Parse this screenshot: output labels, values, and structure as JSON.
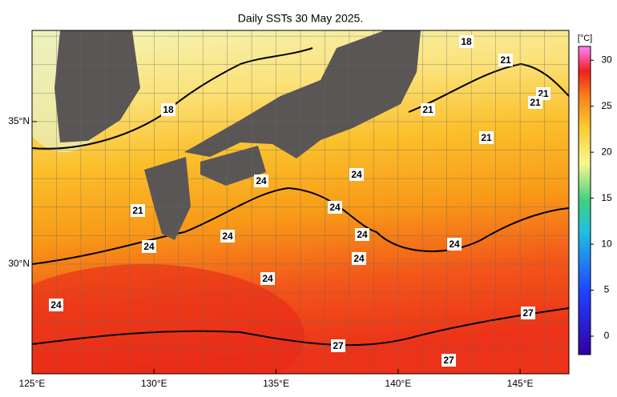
{
  "map": {
    "title": "Daily SSTs 30 May 2025.",
    "lon_lim": [
      125,
      147
    ],
    "lat_lim": [
      26.15,
      38.2
    ],
    "lon_ticks": [
      {
        "value": 125,
        "label": "125°E"
      },
      {
        "value": 130,
        "label": "130°E"
      },
      {
        "value": 135,
        "label": "135°E"
      },
      {
        "value": 140,
        "label": "140°E"
      },
      {
        "value": 145,
        "label": "145°E"
      }
    ],
    "lat_ticks": [
      {
        "value": 30,
        "label": "30°N"
      },
      {
        "value": 35,
        "label": "35°N"
      }
    ],
    "colorbar": {
      "unit": "[°C]",
      "lim": [
        -2,
        31.5
      ],
      "ticks": [
        0,
        5,
        10,
        15,
        20,
        25,
        30
      ]
    },
    "contour_labels": [
      "18",
      "21",
      "21",
      "21",
      "21",
      "18",
      "21",
      "24",
      "24",
      "21",
      "24",
      "24",
      "24",
      "24",
      "24",
      "24",
      "24",
      "24",
      "27",
      "27",
      "27"
    ]
  }
}
